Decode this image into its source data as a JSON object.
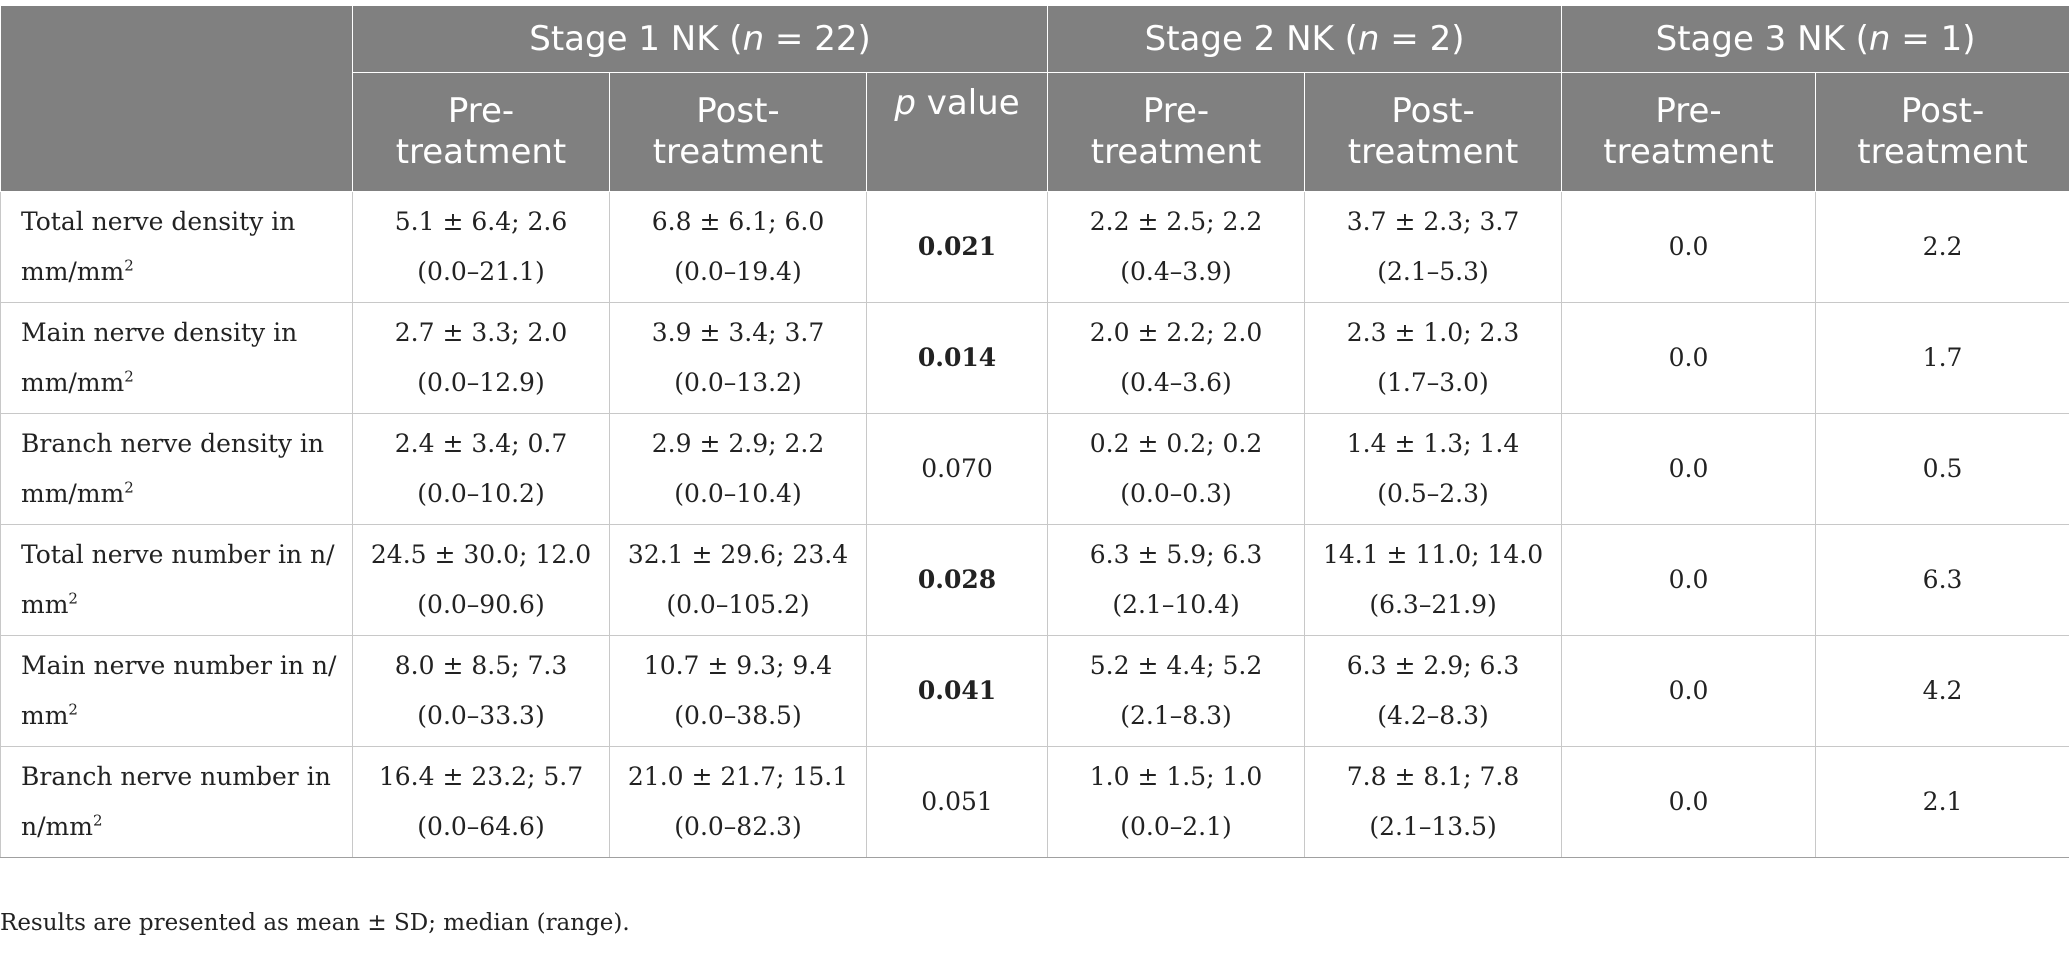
{
  "header": {
    "groups": [
      {
        "prefix": "Stage 1 NK (",
        "n_var": "n",
        "suffix": " = 22)"
      },
      {
        "prefix": "Stage 2 NK (",
        "n_var": "n",
        "suffix": " = 2)"
      },
      {
        "prefix": "Stage 3 NK (",
        "n_var": "n",
        "suffix": " = 1)"
      }
    ],
    "pre_top": "Pre-",
    "pre_bottom": "treatment",
    "post_top": "Post-",
    "post_bottom": "treatment",
    "p_var": "p",
    "p_suffix": " value"
  },
  "rows": [
    {
      "label_line1": "Total nerve density in",
      "label_line2": "mm/mm",
      "label_sup": "2",
      "s1_pre": [
        "5.1 ± 6.4; 2.6",
        "(0.0–21.1)"
      ],
      "s1_post": [
        "6.8 ± 6.1; 6.0",
        "(0.0–19.4)"
      ],
      "p": "0.021",
      "p_bold": true,
      "s2_pre": [
        "2.2 ± 2.5; 2.2",
        "(0.4–3.9)"
      ],
      "s2_post": [
        "3.7 ± 2.3; 3.7",
        "(2.1–5.3)"
      ],
      "s3_pre": "0.0",
      "s3_post": "2.2"
    },
    {
      "label_line1": "Main nerve density in",
      "label_line2": "mm/mm",
      "label_sup": "2",
      "s1_pre": [
        "2.7 ± 3.3; 2.0",
        "(0.0–12.9)"
      ],
      "s1_post": [
        "3.9 ± 3.4; 3.7",
        "(0.0–13.2)"
      ],
      "p": "0.014",
      "p_bold": true,
      "s2_pre": [
        "2.0 ± 2.2; 2.0",
        "(0.4–3.6)"
      ],
      "s2_post": [
        "2.3 ± 1.0; 2.3",
        "(1.7–3.0)"
      ],
      "s3_pre": "0.0",
      "s3_post": "1.7"
    },
    {
      "label_line1": "Branch nerve density in",
      "label_line2": "mm/mm",
      "label_sup": "2",
      "s1_pre": [
        "2.4 ± 3.4; 0.7",
        "(0.0–10.2)"
      ],
      "s1_post": [
        "2.9 ± 2.9; 2.2",
        "(0.0–10.4)"
      ],
      "p": "0.070",
      "p_bold": false,
      "s2_pre": [
        "0.2 ± 0.2; 0.2",
        "(0.0–0.3)"
      ],
      "s2_post": [
        "1.4 ± 1.3; 1.4",
        "(0.5–2.3)"
      ],
      "s3_pre": "0.0",
      "s3_post": "0.5"
    },
    {
      "label_line1": "Total nerve number in n/",
      "label_line2": "mm",
      "label_sup": "2",
      "s1_pre": [
        "24.5 ± 30.0; 12.0",
        "(0.0–90.6)"
      ],
      "s1_post": [
        "32.1 ± 29.6; 23.4",
        "(0.0–105.2)"
      ],
      "p": "0.028",
      "p_bold": true,
      "s2_pre": [
        "6.3 ± 5.9; 6.3",
        "(2.1–10.4)"
      ],
      "s2_post": [
        "14.1 ± 11.0; 14.0",
        "(6.3–21.9)"
      ],
      "s3_pre": "0.0",
      "s3_post": "6.3"
    },
    {
      "label_line1": "Main nerve number in n/",
      "label_line2": "mm",
      "label_sup": "2",
      "s1_pre": [
        "8.0 ± 8.5; 7.3",
        "(0.0–33.3)"
      ],
      "s1_post": [
        "10.7 ± 9.3; 9.4",
        "(0.0–38.5)"
      ],
      "p": "0.041",
      "p_bold": true,
      "s2_pre": [
        "5.2 ± 4.4; 5.2",
        "(2.1–8.3)"
      ],
      "s2_post": [
        "6.3 ± 2.9; 6.3",
        "(4.2–8.3)"
      ],
      "s3_pre": "0.0",
      "s3_post": "4.2"
    },
    {
      "label_line1": "Branch nerve number in",
      "label_line2": "n/mm",
      "label_sup": "2",
      "s1_pre": [
        "16.4 ± 23.2; 5.7",
        "(0.0–64.6)"
      ],
      "s1_post": [
        "21.0 ± 21.7; 15.1",
        "(0.0–82.3)"
      ],
      "p": "0.051",
      "p_bold": false,
      "s2_pre": [
        "1.0 ± 1.5; 1.0",
        "(0.0–2.1)"
      ],
      "s2_post": [
        "7.8 ± 8.1; 7.8",
        "(2.1–13.5)"
      ],
      "s3_pre": "0.0",
      "s3_post": "2.1"
    }
  ],
  "footnote": "Results are presented as mean ± SD; median (range)."
}
